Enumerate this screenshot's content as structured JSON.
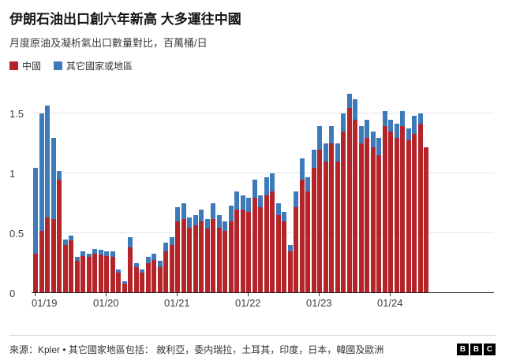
{
  "header": {
    "title": "伊朗石油出口創六年新高 大多運往中國",
    "subtitle": "月度原油及凝析氣出口數量對比，百萬桶/日"
  },
  "legend": [
    {
      "label": "中國",
      "color": "#b52428"
    },
    {
      "label": "其它國家或地區",
      "color": "#3d7ab9"
    }
  ],
  "footer": {
    "source": "來源：Kpler • 其它國家地區包括： 敘利亞，委内瑞拉，土耳其，印度，日本，韓國及歐洲",
    "logo_letters": [
      "B",
      "B",
      "C"
    ]
  },
  "chart_data": {
    "type": "bar",
    "stacked": true,
    "title": "伊朗石油出口創六年新高 大多運往中國",
    "subtitle": "月度原油及凝析氣出口數量對比，百萬桶/日",
    "unit": "百萬桶/日",
    "grid": true,
    "legend_position": "top-left",
    "ylim": [
      0,
      1.7
    ],
    "y_ticks": [
      0,
      0.5,
      1,
      1.5
    ],
    "x_tick_labels": [
      "01/19",
      "01/20",
      "01/21",
      "01/22",
      "01/23",
      "01/24"
    ],
    "x_tick_indices": [
      0,
      12,
      24,
      36,
      48,
      60
    ],
    "x": [
      "2019-01",
      "2019-02",
      "2019-03",
      "2019-04",
      "2019-05",
      "2019-06",
      "2019-07",
      "2019-08",
      "2019-09",
      "2019-10",
      "2019-11",
      "2019-12",
      "2020-01",
      "2020-02",
      "2020-03",
      "2020-04",
      "2020-05",
      "2020-06",
      "2020-07",
      "2020-08",
      "2020-09",
      "2020-10",
      "2020-11",
      "2020-12",
      "2021-01",
      "2021-02",
      "2021-03",
      "2021-04",
      "2021-05",
      "2021-06",
      "2021-07",
      "2021-08",
      "2021-09",
      "2021-10",
      "2021-11",
      "2021-12",
      "2022-01",
      "2022-02",
      "2022-03",
      "2022-04",
      "2022-05",
      "2022-06",
      "2022-07",
      "2022-08",
      "2022-09",
      "2022-10",
      "2022-11",
      "2022-12",
      "2023-01",
      "2023-02",
      "2023-03",
      "2023-04",
      "2023-05",
      "2023-06",
      "2023-07",
      "2023-08",
      "2023-09",
      "2023-10",
      "2023-11",
      "2023-12",
      "2024-01",
      "2024-02",
      "2024-03",
      "2024-04",
      "2024-05",
      "2024-06",
      "2024-07"
    ],
    "series": [
      {
        "name": "中國",
        "color": "#b52428",
        "values": [
          0.33,
          0.52,
          0.63,
          0.62,
          0.95,
          0.4,
          0.44,
          0.27,
          0.31,
          0.3,
          0.33,
          0.32,
          0.31,
          0.3,
          0.17,
          0.08,
          0.38,
          0.22,
          0.17,
          0.25,
          0.28,
          0.22,
          0.35,
          0.4,
          0.6,
          0.62,
          0.55,
          0.57,
          0.6,
          0.54,
          0.62,
          0.55,
          0.52,
          0.6,
          0.7,
          0.7,
          0.68,
          0.8,
          0.72,
          0.82,
          0.85,
          0.65,
          0.6,
          0.35,
          0.72,
          0.95,
          0.85,
          1.05,
          1.2,
          1.1,
          1.25,
          1.1,
          1.35,
          1.55,
          1.45,
          1.25,
          1.3,
          1.22,
          1.15,
          1.4,
          1.35,
          1.3,
          1.4,
          1.28,
          1.33,
          1.42,
          1.22
        ]
      },
      {
        "name": "其它國家或地區",
        "color": "#3d7ab9",
        "values": [
          0.72,
          0.98,
          0.94,
          0.68,
          0.07,
          0.05,
          0.04,
          0.03,
          0.04,
          0.03,
          0.04,
          0.04,
          0.04,
          0.05,
          0.03,
          0.02,
          0.09,
          0.03,
          0.03,
          0.05,
          0.05,
          0.05,
          0.07,
          0.07,
          0.12,
          0.13,
          0.08,
          0.08,
          0.1,
          0.08,
          0.13,
          0.1,
          0.08,
          0.13,
          0.15,
          0.12,
          0.12,
          0.15,
          0.1,
          0.15,
          0.15,
          0.1,
          0.08,
          0.05,
          0.13,
          0.18,
          0.12,
          0.15,
          0.2,
          0.15,
          0.15,
          0.15,
          0.15,
          0.12,
          0.17,
          0.15,
          0.15,
          0.13,
          0.15,
          0.12,
          0.1,
          0.12,
          0.12,
          0.1,
          0.15,
          0.08,
          0.0
        ]
      }
    ]
  }
}
